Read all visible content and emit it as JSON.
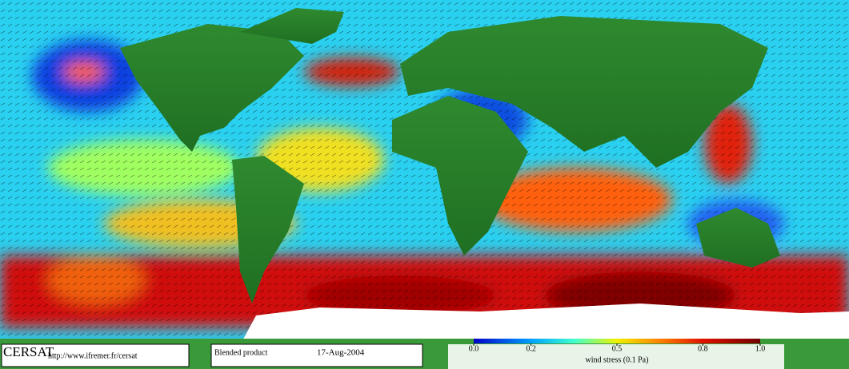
{
  "footer": {
    "logo": "CERSAT",
    "url": "http://www.ifremer.fr/cersat",
    "product": "Blended product",
    "date": "17-Aug-2004"
  },
  "colorbar": {
    "title": "wind stress (0.1 Pa)",
    "lim": [
      0,
      1
    ],
    "ticks": [
      {
        "value": 0,
        "label": "0.0"
      },
      0.2,
      0.5,
      0.8,
      {
        "value": 1,
        "label": "1.0"
      }
    ]
  }
}
